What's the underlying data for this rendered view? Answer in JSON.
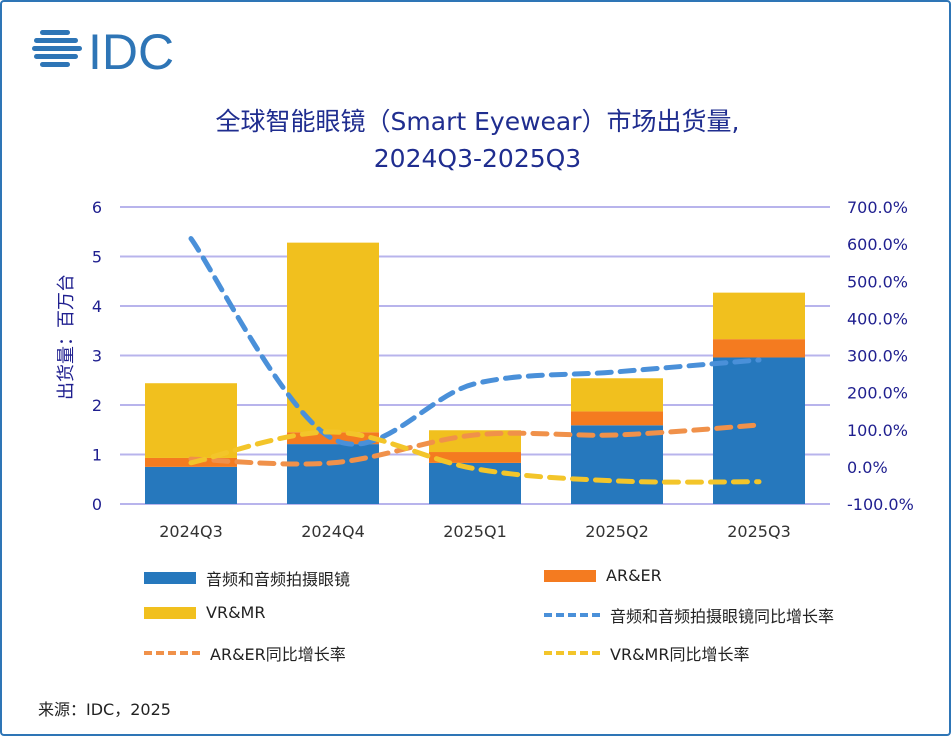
{
  "logo_text": "IDC",
  "colors": {
    "blue_bar": "#2678bd",
    "orange_bar": "#f47b20",
    "yellow_bar": "#f1c01e",
    "blue_line": "#4a90d9",
    "orange_line": "#f0914a",
    "yellow_line": "#f3c52a",
    "grid": "#b8b4ec",
    "axis_text": "#1f1f8f",
    "title": "#1f2d8f",
    "border": "#2e75b6"
  },
  "chart_data": {
    "type": "bar",
    "stacked": true,
    "title_line1": "全球智能眼镜（Smart Eyewear）市场出货量,",
    "title_line2": "2024Q3-2025Q3",
    "ylabel": "出货量：百万台",
    "categories": [
      "2024Q3",
      "2024Q4",
      "2025Q1",
      "2025Q2",
      "2025Q3"
    ],
    "ylim": [
      0,
      6
    ],
    "yticks": [
      "0",
      "1",
      "2",
      "3",
      "4",
      "5",
      "6"
    ],
    "y2lim": [
      -100,
      700
    ],
    "y2ticks": [
      "-100.0%",
      "0.0%",
      "100.0%",
      "200.0%",
      "300.0%",
      "400.0%",
      "500.0%",
      "600.0%",
      "700.0%"
    ],
    "grid": true,
    "series": [
      {
        "name": "音频和音频拍摄眼镜",
        "type": "bar",
        "values": [
          0.75,
          1.21,
          0.83,
          1.59,
          2.96
        ]
      },
      {
        "name": "AR&ER",
        "type": "bar",
        "values": [
          0.18,
          0.24,
          0.22,
          0.28,
          0.37
        ]
      },
      {
        "name": "VR&MR",
        "type": "bar",
        "values": [
          1.51,
          3.83,
          0.44,
          0.67,
          0.94
        ]
      },
      {
        "name": "音频和音频拍摄眼镜同比增长率",
        "type": "line",
        "axis": "right",
        "values": [
          615,
          75,
          224,
          256,
          288
        ]
      },
      {
        "name": "AR&ER同比增长率",
        "type": "line",
        "axis": "right",
        "values": [
          21,
          11,
          86,
          86,
          113
        ]
      },
      {
        "name": "VR&MR同比增长率",
        "type": "line",
        "axis": "right",
        "values": [
          11,
          94,
          -5,
          -38,
          -40
        ]
      }
    ],
    "legend_position": "bottom"
  },
  "source": "来源：IDC，2025"
}
